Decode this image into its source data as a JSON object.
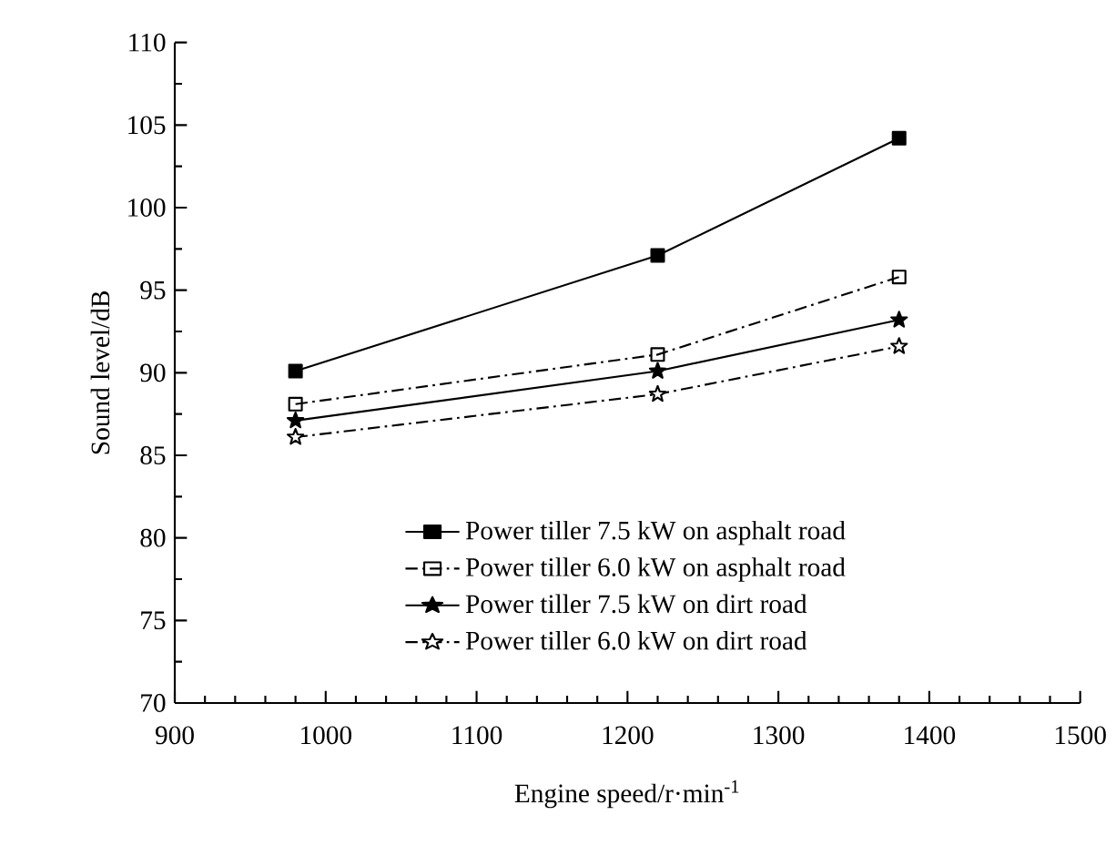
{
  "chart_data": {
    "type": "line",
    "xlabel": "Engine speed/r·min$^{-1}$",
    "ylabel": "Sound level/dB",
    "xlim": [
      900,
      1500
    ],
    "xticks": [
      900,
      1000,
      1100,
      1200,
      1300,
      1400,
      1500
    ],
    "ylim": [
      70,
      110
    ],
    "yticks": [
      70,
      75,
      80,
      85,
      90,
      95,
      100,
      105,
      110
    ],
    "grid": false,
    "legend": "bottom",
    "series": [
      {
        "name": "Power tiller 7.5 kW on asphalt road",
        "color": "#000000",
        "marker": "square",
        "line_style": "solid",
        "x": [
          980,
          1220,
          1380
        ],
        "values": [
          90.1,
          97.1,
          104.2
        ]
      },
      {
        "name": "Power tiller 6.0 kW on asphalt road",
        "color": "#000000",
        "marker": "square",
        "line_style": "dashed",
        "x": [
          980,
          1220,
          1380
        ],
        "values": [
          88.1,
          91.1,
          95.8
        ]
      },
      {
        "name": "Power tiller 7.5 kW on dirt road",
        "color": "#000000",
        "marker": "star",
        "line_style": "solid",
        "x": [
          980,
          1220,
          1380
        ],
        "values": [
          87.1,
          90.1,
          93.2
        ]
      },
      {
        "name": "Power tiller 6.0 kW on dirt road",
        "color": "#000000",
        "marker": "star",
        "line_style": "dashed",
        "x": [
          980,
          1220,
          1380
        ],
        "values": [
          86.1,
          88.7,
          91.6
        ]
      }
    ]
  }
}
